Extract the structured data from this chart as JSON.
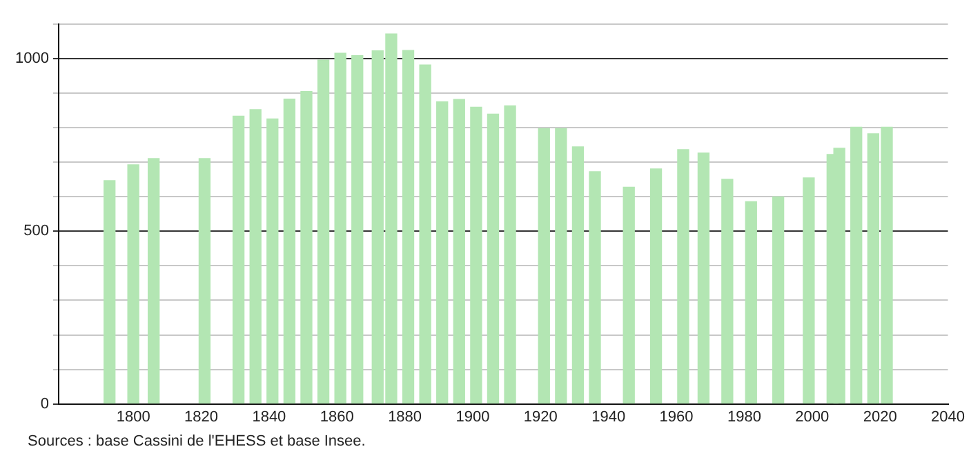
{
  "chart_data": {
    "type": "bar",
    "x": [
      1793,
      1800,
      1806,
      1821,
      1831,
      1836,
      1841,
      1846,
      1851,
      1856,
      1861,
      1866,
      1872,
      1876,
      1881,
      1886,
      1891,
      1896,
      1901,
      1906,
      1911,
      1921,
      1926,
      1931,
      1936,
      1946,
      1954,
      1962,
      1968,
      1975,
      1982,
      1990,
      1999,
      2006,
      2008,
      2013,
      2018,
      2022
    ],
    "values": [
      647,
      693,
      711,
      711,
      834,
      853,
      826,
      883,
      905,
      996,
      1016,
      1009,
      1023,
      1072,
      1024,
      982,
      875,
      882,
      860,
      840,
      864,
      798,
      798,
      745,
      673,
      628,
      681,
      737,
      727,
      651,
      586,
      600,
      655,
      723,
      741,
      802,
      783,
      802
    ],
    "color": "#b3e6b3",
    "xlim": [
      1778,
      2040
    ],
    "xticks": [
      1800,
      1820,
      1840,
      1860,
      1880,
      1900,
      1920,
      1940,
      1960,
      1980,
      2000,
      2020,
      2040
    ],
    "ylim": [
      0,
      1100
    ],
    "yticks": [
      0,
      {
        "value": 100,
        "label": null
      },
      {
        "value": 200,
        "label": null
      },
      {
        "value": 300,
        "label": null
      },
      {
        "value": 400,
        "label": null
      },
      500,
      {
        "value": 600,
        "label": null
      },
      {
        "value": 700,
        "label": null
      },
      {
        "value": 800,
        "label": null
      },
      {
        "value": 900,
        "label": null
      },
      1000,
      {
        "value": 1100,
        "label": null
      }
    ],
    "grid": "y",
    "annotations": [
      "Sources : base Cassini de l'EHESS et base Insee."
    ]
  }
}
